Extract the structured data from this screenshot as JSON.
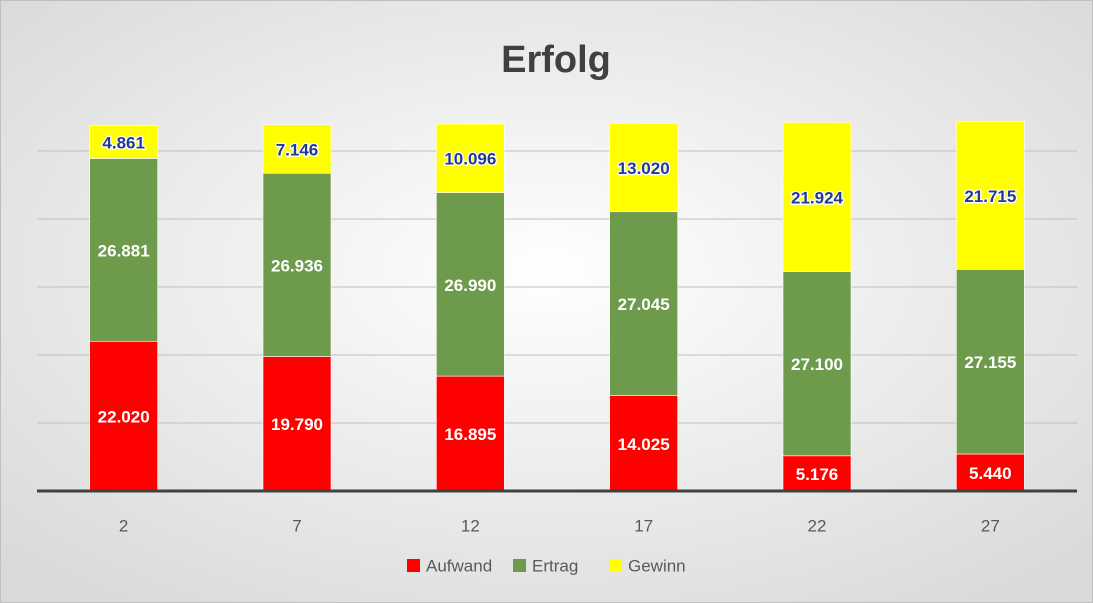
{
  "chart_data": {
    "type": "bar",
    "stacked": true,
    "title": "Erfolg",
    "categories": [
      "2",
      "7",
      "12",
      "17",
      "22",
      "27"
    ],
    "series": [
      {
        "name": "Aufwand",
        "color": "#ff0000",
        "values": [
          22020,
          19790,
          16895,
          14025,
          5176,
          5440
        ],
        "value_labels": [
          "22.020",
          "19.790",
          "16.895",
          "14.025",
          "5.176",
          "5.440"
        ]
      },
      {
        "name": "Ertrag",
        "color": "#6e9a4c",
        "values": [
          26881,
          26936,
          26990,
          27045,
          27100,
          27155
        ],
        "value_labels": [
          "26.881",
          "26.936",
          "26.990",
          "27.045",
          "27.100",
          "27.155"
        ]
      },
      {
        "name": "Gewinn",
        "color": "#ffff00",
        "values": [
          4861,
          7146,
          10096,
          13020,
          21924,
          21715
        ],
        "value_labels": [
          "4.861",
          "7.146",
          "10.096",
          "13.020",
          "21.924",
          "21.715"
        ]
      }
    ],
    "ylim": [
      0,
      55000
    ],
    "yticks": [
      0,
      10000,
      20000,
      30000,
      40000,
      50000
    ],
    "grid": true,
    "legend": "bottom"
  }
}
